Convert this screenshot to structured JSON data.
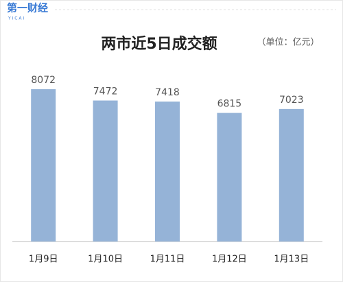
{
  "logo": {
    "name": "第一财经",
    "sub": "Y I C A I"
  },
  "chart_data": {
    "type": "bar",
    "title": "两市近5日成交额",
    "subtitle": "（单位：亿元）",
    "categories": [
      "1月9日",
      "1月10日",
      "1月11日",
      "1月12日",
      "1月13日"
    ],
    "values": [
      8072,
      7472,
      7418,
      6815,
      7023
    ],
    "color": "#95b3d7",
    "ylim": [
      0,
      9000
    ]
  }
}
